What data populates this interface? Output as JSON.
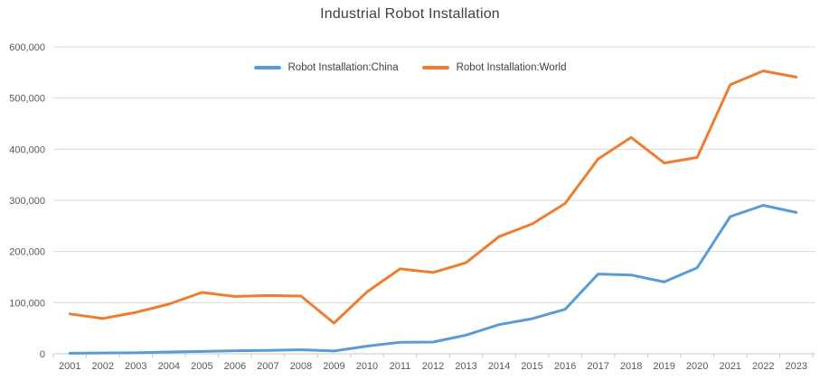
{
  "title": "Industrial Robot Installation",
  "legend": {
    "items": [
      {
        "id": "china",
        "label": "Robot Installation:China",
        "color": "#5B9BD5"
      },
      {
        "id": "world",
        "label": "Robot Installation:World",
        "color": "#ED7D31"
      }
    ]
  },
  "colors": {
    "series_china": "#5B9BD5",
    "series_world": "#ED7D31",
    "gridline": "#D9D9D9",
    "axis_line": "#C9C9C9",
    "axis_label": "#595959",
    "title_text": "#404040",
    "background": "#FFFFFF"
  },
  "chart_data": {
    "type": "line",
    "title": "Industrial Robot Installation",
    "xlabel": "",
    "ylabel": "",
    "x": [
      "2001",
      "2002",
      "2003",
      "2004",
      "2005",
      "2006",
      "2007",
      "2008",
      "2009",
      "2010",
      "2011",
      "2012",
      "2013",
      "2014",
      "2015",
      "2016",
      "2017",
      "2018",
      "2019",
      "2020",
      "2021",
      "2022",
      "2023"
    ],
    "series": [
      {
        "name": "Robot Installation:China",
        "color": "#5B9BD5",
        "values": [
          1000,
          1500,
          2000,
          3500,
          4500,
          6000,
          6600,
          8000,
          5500,
          15000,
          22600,
          23000,
          36600,
          57000,
          68600,
          87000,
          156000,
          154000,
          140500,
          168400,
          268200,
          290300,
          276300
        ]
      },
      {
        "name": "Robot Installation:World",
        "color": "#ED7D31",
        "values": [
          78000,
          69000,
          81000,
          97000,
          120000,
          112000,
          114000,
          113000,
          60000,
          121000,
          166000,
          159000,
          178000,
          229000,
          254000,
          294000,
          381000,
          423000,
          373000,
          384000,
          526000,
          553000,
          541000
        ]
      }
    ],
    "ylim": [
      0,
      600000
    ],
    "yticks": [
      0,
      100000,
      200000,
      300000,
      400000,
      500000,
      600000
    ],
    "ytick_labels": [
      "0",
      "100,000",
      "200,000",
      "300,000",
      "400,000",
      "500,000",
      "600,000"
    ],
    "grid": "horizontal",
    "legend_position": "top-center-inside",
    "line_width": 3
  }
}
